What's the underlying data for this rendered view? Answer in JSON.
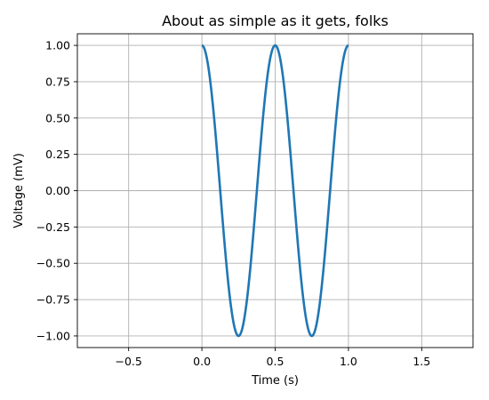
{
  "chart_data": {
    "type": "line",
    "title": "About as simple as it gets, folks",
    "xlabel": "Time (s)",
    "ylabel": "Voltage (mV)",
    "xlim": [
      -0.85,
      1.85
    ],
    "ylim": [
      -1.08,
      1.08
    ],
    "x_ticks": [
      -0.5,
      0.0,
      0.5,
      1.0,
      1.5
    ],
    "x_tick_labels": [
      "−0.5",
      "0.0",
      "0.5",
      "1.0",
      "1.5"
    ],
    "y_ticks": [
      1.0,
      0.75,
      0.5,
      0.25,
      0.0,
      -0.25,
      -0.5,
      -0.75,
      -1.0
    ],
    "y_tick_labels": [
      "1.00",
      "0.75",
      "0.50",
      "0.25",
      "0.00",
      "−0.25",
      "−0.50",
      "−0.75",
      "−1.00"
    ],
    "grid": true,
    "series": [
      {
        "color": "#1f77b4",
        "function": "cos(4*pi*t)",
        "x_range": [
          0.0,
          1.0
        ],
        "points": [
          [
            0.0,
            1.0
          ],
          [
            0.125,
            0.0
          ],
          [
            0.25,
            -1.0
          ],
          [
            0.375,
            0.0
          ],
          [
            0.5,
            1.0
          ],
          [
            0.625,
            0.0
          ],
          [
            0.75,
            -1.0
          ],
          [
            0.875,
            0.0
          ],
          [
            1.0,
            1.0
          ]
        ]
      }
    ]
  }
}
